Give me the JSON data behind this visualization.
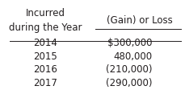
{
  "col1_header_line1": "Incurred",
  "col1_header_line2": "during the Year",
  "col2_header": "(Gain) or Loss",
  "rows": [
    [
      "2014",
      "$300,000"
    ],
    [
      "2015",
      "480,000"
    ],
    [
      "2016",
      "(210,000)"
    ],
    [
      "2017",
      "(290,000)"
    ]
  ],
  "bg_color": "#ffffff",
  "text_color": "#231f20",
  "font_size": 8.5
}
